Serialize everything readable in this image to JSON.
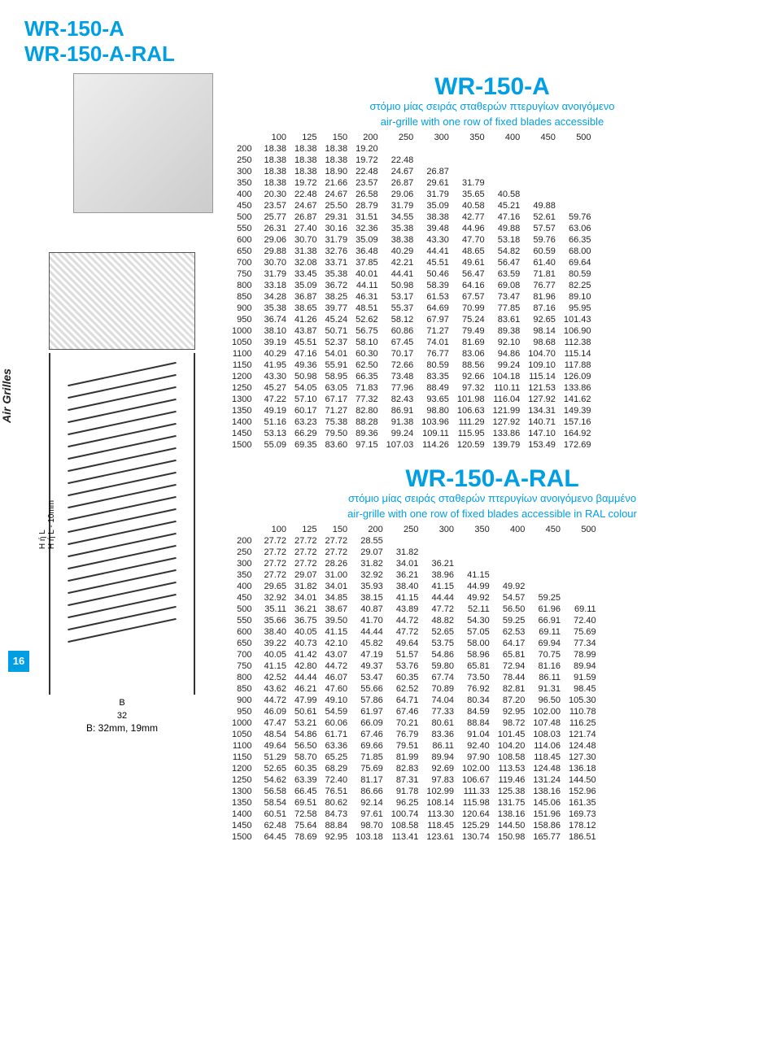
{
  "page_number": "16",
  "sidebar_brand": "Air Grilles",
  "top_titles": [
    "WR-150-A",
    "WR-150-A-RAL"
  ],
  "diagram": {
    "vert1": "H ή L",
    "vert2": "H ή L  - 10mm",
    "bdim": "B",
    "width_dim": "32",
    "note": "B: 32mm, 19mm"
  },
  "sheets": [
    {
      "title": "WR-150-A",
      "sub1": "στόμιο μίας σειράς σταθερών πτερυγίων ανοιγόμενο",
      "sub2": "air-grille with one row of fixed blades accessible",
      "col_headers": [
        "100",
        "125",
        "150",
        "200",
        "250",
        "300",
        "350",
        "400",
        "450",
        "500"
      ],
      "rows": [
        {
          "h": "200",
          "v": [
            "18.38",
            "18.38",
            "18.38",
            "19.20",
            "",
            "",
            "",
            "",
            "",
            ""
          ]
        },
        {
          "h": "250",
          "v": [
            "18.38",
            "18.38",
            "18.38",
            "19.72",
            "22.48",
            "",
            "",
            "",
            "",
            ""
          ]
        },
        {
          "h": "300",
          "v": [
            "18.38",
            "18.38",
            "18.90",
            "22.48",
            "24.67",
            "26.87",
            "",
            "",
            "",
            ""
          ]
        },
        {
          "h": "350",
          "v": [
            "18.38",
            "19.72",
            "21.66",
            "23.57",
            "26.87",
            "29.61",
            "31.79",
            "",
            "",
            ""
          ]
        },
        {
          "h": "400",
          "v": [
            "20.30",
            "22.48",
            "24.67",
            "26.58",
            "29.06",
            "31.79",
            "35.65",
            "40.58",
            "",
            ""
          ]
        },
        {
          "h": "450",
          "v": [
            "23.57",
            "24.67",
            "25.50",
            "28.79",
            "31.79",
            "35.09",
            "40.58",
            "45.21",
            "49.88",
            ""
          ]
        },
        {
          "h": "500",
          "v": [
            "25.77",
            "26.87",
            "29.31",
            "31.51",
            "34.55",
            "38.38",
            "42.77",
            "47.16",
            "52.61",
            "59.76"
          ]
        },
        {
          "h": "550",
          "v": [
            "26.31",
            "27.40",
            "30.16",
            "32.36",
            "35.38",
            "39.48",
            "44.96",
            "49.88",
            "57.57",
            "63.06"
          ]
        },
        {
          "h": "600",
          "v": [
            "29.06",
            "30.70",
            "31.79",
            "35.09",
            "38.38",
            "43.30",
            "47.70",
            "53.18",
            "59.76",
            "66.35"
          ]
        },
        {
          "h": "650",
          "v": [
            "29.88",
            "31.38",
            "32.76",
            "36.48",
            "40.29",
            "44.41",
            "48.65",
            "54.82",
            "60.59",
            "68.00"
          ]
        },
        {
          "h": "700",
          "v": [
            "30.70",
            "32.08",
            "33.71",
            "37.85",
            "42.21",
            "45.51",
            "49.61",
            "56.47",
            "61.40",
            "69.64"
          ]
        },
        {
          "h": "750",
          "v": [
            "31.79",
            "33.45",
            "35.38",
            "40.01",
            "44.41",
            "50.46",
            "56.47",
            "63.59",
            "71.81",
            "80.59"
          ]
        },
        {
          "h": "800",
          "v": [
            "33.18",
            "35.09",
            "36.72",
            "44.11",
            "50.98",
            "58.39",
            "64.16",
            "69.08",
            "76.77",
            "82.25"
          ]
        },
        {
          "h": "850",
          "v": [
            "34.28",
            "36.87",
            "38.25",
            "46.31",
            "53.17",
            "61.53",
            "67.57",
            "73.47",
            "81.96",
            "89.10"
          ]
        },
        {
          "h": "900",
          "v": [
            "35.38",
            "38.65",
            "39.77",
            "48.51",
            "55.37",
            "64.69",
            "70.99",
            "77.85",
            "87.16",
            "95.95"
          ]
        },
        {
          "h": "950",
          "v": [
            "36.74",
            "41.26",
            "45.24",
            "52.62",
            "58.12",
            "67.97",
            "75.24",
            "83.61",
            "92.65",
            "101.43"
          ]
        },
        {
          "h": "1000",
          "v": [
            "38.10",
            "43.87",
            "50.71",
            "56.75",
            "60.86",
            "71.27",
            "79.49",
            "89.38",
            "98.14",
            "106.90"
          ]
        },
        {
          "h": "1050",
          "v": [
            "39.19",
            "45.51",
            "52.37",
            "58.10",
            "67.45",
            "74.01",
            "81.69",
            "92.10",
            "98.68",
            "112.38"
          ]
        },
        {
          "h": "1100",
          "v": [
            "40.29",
            "47.16",
            "54.01",
            "60.30",
            "70.17",
            "76.77",
            "83.06",
            "94.86",
            "104.70",
            "115.14"
          ]
        },
        {
          "h": "1150",
          "v": [
            "41.95",
            "49.36",
            "55.91",
            "62.50",
            "72.66",
            "80.59",
            "88.56",
            "99.24",
            "109.10",
            "117.88"
          ]
        },
        {
          "h": "1200",
          "v": [
            "43.30",
            "50.98",
            "58.95",
            "66.35",
            "73.48",
            "83.35",
            "92.66",
            "104.18",
            "115.14",
            "126.09"
          ]
        },
        {
          "h": "1250",
          "v": [
            "45.27",
            "54.05",
            "63.05",
            "71.83",
            "77.96",
            "88.49",
            "97.32",
            "110.11",
            "121.53",
            "133.86"
          ]
        },
        {
          "h": "1300",
          "v": [
            "47.22",
            "57.10",
            "67.17",
            "77.32",
            "82.43",
            "93.65",
            "101.98",
            "116.04",
            "127.92",
            "141.62"
          ]
        },
        {
          "h": "1350",
          "v": [
            "49.19",
            "60.17",
            "71.27",
            "82.80",
            "86.91",
            "98.80",
            "106.63",
            "121.99",
            "134.31",
            "149.39"
          ]
        },
        {
          "h": "1400",
          "v": [
            "51.16",
            "63.23",
            "75.38",
            "88.28",
            "91.38",
            "103.96",
            "111.29",
            "127.92",
            "140.71",
            "157.16"
          ]
        },
        {
          "h": "1450",
          "v": [
            "53.13",
            "66.29",
            "79.50",
            "89.36",
            "99.24",
            "109.11",
            "115.95",
            "133.86",
            "147.10",
            "164.92"
          ]
        },
        {
          "h": "1500",
          "v": [
            "55.09",
            "69.35",
            "83.60",
            "97.15",
            "107.03",
            "114.26",
            "120.59",
            "139.79",
            "153.49",
            "172.69"
          ]
        }
      ]
    },
    {
      "title": "WR-150-A-RAL",
      "sub1": "στόμιο μίας σειράς σταθερών πτερυγίων ανοιγόμενο βαμμένο",
      "sub2": "air-grille with one row of fixed blades accessible in RAL colour",
      "col_headers": [
        "100",
        "125",
        "150",
        "200",
        "250",
        "300",
        "350",
        "400",
        "450",
        "500"
      ],
      "rows": [
        {
          "h": "200",
          "v": [
            "27.72",
            "27.72",
            "27.72",
            "28.55",
            "",
            "",
            "",
            "",
            "",
            ""
          ]
        },
        {
          "h": "250",
          "v": [
            "27.72",
            "27.72",
            "27.72",
            "29.07",
            "31.82",
            "",
            "",
            "",
            "",
            ""
          ]
        },
        {
          "h": "300",
          "v": [
            "27.72",
            "27.72",
            "28.26",
            "31.82",
            "34.01",
            "36.21",
            "",
            "",
            "",
            ""
          ]
        },
        {
          "h": "350",
          "v": [
            "27.72",
            "29.07",
            "31.00",
            "32.92",
            "36.21",
            "38.96",
            "41.15",
            "",
            "",
            ""
          ]
        },
        {
          "h": "400",
          "v": [
            "29.65",
            "31.82",
            "34.01",
            "35.93",
            "38.40",
            "41.15",
            "44.99",
            "49.92",
            "",
            ""
          ]
        },
        {
          "h": "450",
          "v": [
            "32.92",
            "34.01",
            "34.85",
            "38.15",
            "41.15",
            "44.44",
            "49.92",
            "54.57",
            "59.25",
            ""
          ]
        },
        {
          "h": "500",
          "v": [
            "35.11",
            "36.21",
            "38.67",
            "40.87",
            "43.89",
            "47.72",
            "52.11",
            "56.50",
            "61.96",
            "69.11"
          ]
        },
        {
          "h": "550",
          "v": [
            "35.66",
            "36.75",
            "39.50",
            "41.70",
            "44.72",
            "48.82",
            "54.30",
            "59.25",
            "66.91",
            "72.40"
          ]
        },
        {
          "h": "600",
          "v": [
            "38.40",
            "40.05",
            "41.15",
            "44.44",
            "47.72",
            "52.65",
            "57.05",
            "62.53",
            "69.11",
            "75.69"
          ]
        },
        {
          "h": "650",
          "v": [
            "39.22",
            "40.73",
            "42.10",
            "45.82",
            "49.64",
            "53.75",
            "58.00",
            "64.17",
            "69.94",
            "77.34"
          ]
        },
        {
          "h": "700",
          "v": [
            "40.05",
            "41.42",
            "43.07",
            "47.19",
            "51.57",
            "54.86",
            "58.96",
            "65.81",
            "70.75",
            "78.99"
          ]
        },
        {
          "h": "750",
          "v": [
            "41.15",
            "42.80",
            "44.72",
            "49.37",
            "53.76",
            "59.80",
            "65.81",
            "72.94",
            "81.16",
            "89.94"
          ]
        },
        {
          "h": "800",
          "v": [
            "42.52",
            "44.44",
            "46.07",
            "53.47",
            "60.35",
            "67.74",
            "73.50",
            "78.44",
            "86.11",
            "91.59"
          ]
        },
        {
          "h": "850",
          "v": [
            "43.62",
            "46.21",
            "47.60",
            "55.66",
            "62.52",
            "70.89",
            "76.92",
            "82.81",
            "91.31",
            "98.45"
          ]
        },
        {
          "h": "900",
          "v": [
            "44.72",
            "47.99",
            "49.10",
            "57.86",
            "64.71",
            "74.04",
            "80.34",
            "87.20",
            "96.50",
            "105.30"
          ]
        },
        {
          "h": "950",
          "v": [
            "46.09",
            "50.61",
            "54.59",
            "61.97",
            "67.46",
            "77.33",
            "84.59",
            "92.95",
            "102.00",
            "110.78"
          ]
        },
        {
          "h": "1000",
          "v": [
            "47.47",
            "53.21",
            "60.06",
            "66.09",
            "70.21",
            "80.61",
            "88.84",
            "98.72",
            "107.48",
            "116.25"
          ]
        },
        {
          "h": "1050",
          "v": [
            "48.54",
            "54.86",
            "61.71",
            "67.46",
            "76.79",
            "83.36",
            "91.04",
            "101.45",
            "108.03",
            "121.74"
          ]
        },
        {
          "h": "1100",
          "v": [
            "49.64",
            "56.50",
            "63.36",
            "69.66",
            "79.51",
            "86.11",
            "92.40",
            "104.20",
            "114.06",
            "124.48"
          ]
        },
        {
          "h": "1150",
          "v": [
            "51.29",
            "58.70",
            "65.25",
            "71.85",
            "81.99",
            "89.94",
            "97.90",
            "108.58",
            "118.45",
            "127.30"
          ]
        },
        {
          "h": "1200",
          "v": [
            "52.65",
            "60.35",
            "68.29",
            "75.69",
            "82.83",
            "92.69",
            "102.00",
            "113.53",
            "124.48",
            "136.18"
          ]
        },
        {
          "h": "1250",
          "v": [
            "54.62",
            "63.39",
            "72.40",
            "81.17",
            "87.31",
            "97.83",
            "106.67",
            "119.46",
            "131.24",
            "144.50"
          ]
        },
        {
          "h": "1300",
          "v": [
            "56.58",
            "66.45",
            "76.51",
            "86.66",
            "91.78",
            "102.99",
            "111.33",
            "125.38",
            "138.16",
            "152.96"
          ]
        },
        {
          "h": "1350",
          "v": [
            "58.54",
            "69.51",
            "80.62",
            "92.14",
            "96.25",
            "108.14",
            "115.98",
            "131.75",
            "145.06",
            "161.35"
          ]
        },
        {
          "h": "1400",
          "v": [
            "60.51",
            "72.58",
            "84.73",
            "97.61",
            "100.74",
            "113.30",
            "120.64",
            "138.16",
            "151.96",
            "169.73"
          ]
        },
        {
          "h": "1450",
          "v": [
            "62.48",
            "75.64",
            "88.84",
            "98.70",
            "108.58",
            "118.45",
            "125.29",
            "144.50",
            "158.86",
            "178.12"
          ]
        },
        {
          "h": "1500",
          "v": [
            "64.45",
            "78.69",
            "92.95",
            "103.18",
            "113.41",
            "123.61",
            "130.74",
            "150.98",
            "165.77",
            "186.51"
          ]
        }
      ]
    }
  ],
  "colors": {
    "brand": "#009fe3",
    "text": "#222222"
  }
}
